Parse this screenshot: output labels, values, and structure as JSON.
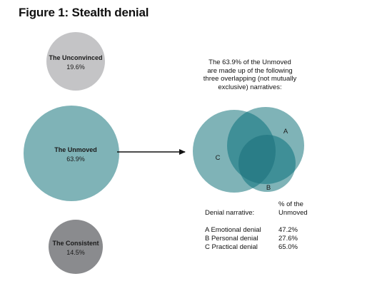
{
  "title": "Figure 1: Stealth denial",
  "colors": {
    "unconvinced": "#c4c4c6",
    "unmoved": "#7fb3b7",
    "consistent": "#8a8b8e",
    "overlap": "#3f8f97",
    "overlap_deep": "#2a7d87",
    "arrow": "#111111"
  },
  "groups": [
    {
      "id": "unconvinced",
      "label": "The Unconvinced",
      "value": "19.6%"
    },
    {
      "id": "unmoved",
      "label": "The Unmoved",
      "value": "63.9%"
    },
    {
      "id": "consistent",
      "label": "The Consistent",
      "value": "14.5%"
    }
  ],
  "intro_lines": [
    "The 63.9% of the Unmoved",
    "are made up of the following",
    "three overlapping (not mutually",
    "exclusive) narratives:"
  ],
  "venn_labels": {
    "a": "A",
    "b": "B",
    "c": "C"
  },
  "table": {
    "label_header": "Denial narrative:",
    "col_header_lines": [
      "% of the",
      "Unmoved"
    ],
    "rows": [
      {
        "name": "A  Emotional denial",
        "pct": "47.2%"
      },
      {
        "name": "B  Personal denial",
        "pct": "27.6%"
      },
      {
        "name": "C  Practical denial",
        "pct": "65.0%"
      }
    ]
  }
}
